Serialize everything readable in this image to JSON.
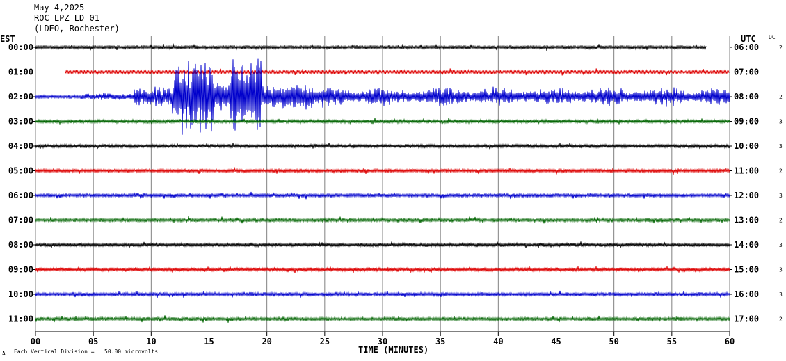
{
  "header": {
    "date": "May 4,2025",
    "station": "ROC LPZ LD 01",
    "network": "(LDEO, Rochester)"
  },
  "left_tz": "EST",
  "right_tz": "UTC",
  "dc_label": "DC",
  "footer": {
    "scale_note": "Each Vertical Division =   50.00 microvolts",
    "corner_mark": "A"
  },
  "chart_data": {
    "type": "seismogram",
    "xlabel": "TIME (MINUTES)",
    "xlim": [
      0,
      60
    ],
    "x_ticks": [
      "00",
      "05",
      "10",
      "15",
      "20",
      "25",
      "30",
      "35",
      "40",
      "45",
      "50",
      "55",
      "60"
    ],
    "grid": true,
    "colors": {
      "black": "#000000",
      "red": "#dd0000",
      "blue": "#0000cc",
      "green": "#006400"
    },
    "traces": [
      {
        "est": "00:00",
        "utc": "06:00",
        "dc": "2",
        "color": "black",
        "start_min": 0,
        "end_min": 58,
        "amplitude": "normal"
      },
      {
        "est": "01:00",
        "utc": "07:00",
        "dc": "",
        "color": "red",
        "start_min": 2.6,
        "end_min": 60,
        "amplitude": "normal"
      },
      {
        "est": "02:00",
        "utc": "08:00",
        "dc": "2",
        "color": "blue",
        "start_min": 0,
        "end_min": 60,
        "amplitude": "earthquake",
        "event_start_min": 4,
        "max_phase_min": [
          12,
          18
        ]
      },
      {
        "est": "03:00",
        "utc": "09:00",
        "dc": "3",
        "color": "green",
        "start_min": 0,
        "end_min": 60,
        "amplitude": "normal"
      },
      {
        "est": "04:00",
        "utc": "10:00",
        "dc": "3",
        "color": "black",
        "start_min": 0,
        "end_min": 60,
        "amplitude": "normal"
      },
      {
        "est": "05:00",
        "utc": "11:00",
        "dc": "2",
        "color": "red",
        "start_min": 0,
        "end_min": 60,
        "amplitude": "normal"
      },
      {
        "est": "06:00",
        "utc": "12:00",
        "dc": "3",
        "color": "blue",
        "start_min": 0,
        "end_min": 60,
        "amplitude": "normal"
      },
      {
        "est": "07:00",
        "utc": "13:00",
        "dc": "2",
        "color": "green",
        "start_min": 0,
        "end_min": 60,
        "amplitude": "normal"
      },
      {
        "est": "08:00",
        "utc": "14:00",
        "dc": "3",
        "color": "black",
        "start_min": 0,
        "end_min": 60,
        "amplitude": "normal"
      },
      {
        "est": "09:00",
        "utc": "15:00",
        "dc": "3",
        "color": "red",
        "start_min": 0,
        "end_min": 60,
        "amplitude": "normal"
      },
      {
        "est": "10:00",
        "utc": "16:00",
        "dc": "3",
        "color": "blue",
        "start_min": 0,
        "end_min": 60,
        "amplitude": "normal"
      },
      {
        "est": "11:00",
        "utc": "17:00",
        "dc": "2",
        "color": "green",
        "start_min": 0,
        "end_min": 60,
        "amplitude": "normal"
      }
    ]
  }
}
